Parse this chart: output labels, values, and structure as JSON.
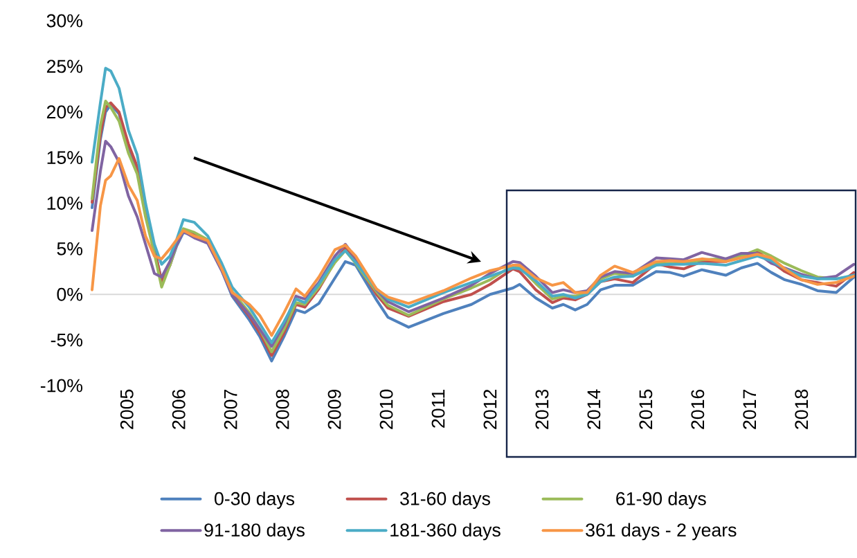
{
  "chart_data": {
    "type": "line",
    "x": [
      2004.33,
      2004.49,
      2004.59,
      2004.69,
      2004.85,
      2005.03,
      2005.2,
      2005.36,
      2005.53,
      2005.67,
      2005.83,
      2005.96,
      2006.09,
      2006.3,
      2006.56,
      2006.83,
      2007.03,
      2007.36,
      2007.56,
      2007.79,
      2008.03,
      2008.26,
      2008.43,
      2008.7,
      2009.01,
      2009.21,
      2009.41,
      2009.81,
      2010.03,
      2010.43,
      2011.1,
      2011.64,
      2012.0,
      2012.44,
      2012.57,
      2012.88,
      2013.2,
      2013.41,
      2013.64,
      2013.87,
      2014.13,
      2014.4,
      2014.75,
      2015.2,
      2015.47,
      2015.73,
      2016.08,
      2016.54,
      2016.84,
      2017.15,
      2017.42,
      2017.68,
      2018.0,
      2018.31,
      2018.67,
      2019.01
    ],
    "xlim": [
      2004.29,
      2019.03
    ],
    "xticks": [
      2005,
      2006,
      2007,
      2008,
      2009,
      2010,
      2011,
      2012,
      2013,
      2014,
      2015,
      2016,
      2017,
      2018
    ],
    "ylim": [
      -10,
      30
    ],
    "yticks": [
      {
        "value": -10,
        "label": "-10%"
      },
      {
        "value": -5,
        "label": "-5%"
      },
      {
        "value": 0,
        "label": "0%"
      },
      {
        "value": 5,
        "label": "5%"
      },
      {
        "value": 10,
        "label": "10%"
      },
      {
        "value": 15,
        "label": "15%"
      },
      {
        "value": 20,
        "label": "20%"
      },
      {
        "value": 25,
        "label": "25%"
      },
      {
        "value": 30,
        "label": "30%"
      }
    ],
    "legend": "bottom",
    "series": [
      {
        "name": "0-30 days",
        "color": "#4f81bd",
        "values": [
          9.5,
          17.0,
          20.0,
          20.8,
          19.8,
          16.2,
          13.8,
          9.0,
          5.0,
          1.5,
          3.2,
          5.3,
          6.8,
          6.4,
          5.6,
          2.6,
          -0.2,
          -2.8,
          -4.6,
          -7.3,
          -4.6,
          -1.7,
          -2.0,
          -1.0,
          1.8,
          3.6,
          3.2,
          -0.6,
          -2.5,
          -3.6,
          -2.1,
          -1.1,
          0.0,
          0.7,
          1.1,
          -0.4,
          -1.5,
          -1.1,
          -1.7,
          -1.1,
          0.5,
          1.0,
          1.0,
          2.5,
          2.4,
          2.0,
          2.7,
          2.1,
          2.9,
          3.4,
          2.4,
          1.6,
          1.1,
          0.4,
          0.2,
          1.9
        ]
      },
      {
        "name": "31-60 days",
        "color": "#c0504d",
        "values": [
          10.1,
          17.5,
          20.5,
          21.0,
          20.0,
          16.5,
          14.0,
          9.0,
          5.0,
          1.4,
          3.2,
          5.5,
          7.0,
          6.6,
          5.8,
          2.8,
          0.0,
          -2.4,
          -4.2,
          -6.7,
          -4.2,
          -1.1,
          -1.4,
          0.6,
          3.6,
          5.1,
          3.6,
          0.0,
          -1.5,
          -2.4,
          -0.8,
          0.0,
          1.1,
          2.8,
          2.5,
          0.5,
          -0.9,
          -0.4,
          -0.6,
          0.0,
          1.4,
          1.7,
          1.3,
          3.4,
          3.0,
          2.8,
          3.6,
          3.6,
          4.2,
          4.7,
          3.6,
          2.5,
          1.6,
          1.3,
          0.9,
          2.4
        ]
      },
      {
        "name": "61-90 days",
        "color": "#9bbb59",
        "values": [
          10.5,
          18.5,
          21.2,
          20.5,
          19.0,
          15.5,
          13.2,
          8.5,
          4.5,
          0.8,
          3.2,
          5.5,
          7.2,
          6.8,
          6.0,
          3.0,
          0.3,
          -2.0,
          -3.8,
          -6.3,
          -3.8,
          -0.9,
          -1.1,
          0.8,
          3.5,
          4.8,
          3.4,
          0.3,
          -1.2,
          -2.3,
          -0.5,
          0.7,
          1.6,
          3.2,
          3.0,
          1.2,
          -0.5,
          -0.2,
          -0.2,
          0.2,
          1.7,
          2.3,
          2.0,
          3.4,
          3.4,
          3.4,
          3.8,
          3.9,
          4.2,
          4.9,
          4.2,
          3.4,
          2.6,
          1.9,
          1.7,
          2.0
        ]
      },
      {
        "name": "91-180 days",
        "color": "#8064a2",
        "values": [
          7.0,
          13.5,
          16.8,
          16.2,
          14.5,
          10.8,
          8.5,
          5.5,
          2.3,
          1.9,
          3.6,
          5.5,
          6.9,
          6.2,
          5.6,
          2.6,
          0.0,
          -2.2,
          -3.8,
          -5.7,
          -3.3,
          -0.2,
          -0.5,
          1.3,
          4.2,
          5.5,
          4.0,
          0.5,
          -0.8,
          -1.9,
          -0.4,
          1.0,
          2.3,
          3.6,
          3.5,
          2.0,
          0.2,
          0.5,
          0.2,
          0.4,
          1.9,
          2.5,
          2.3,
          4.0,
          3.9,
          3.8,
          4.6,
          3.9,
          4.5,
          4.5,
          3.4,
          2.9,
          2.2,
          1.7,
          2.0,
          3.3
        ]
      },
      {
        "name": "181-360 days",
        "color": "#4bacc6",
        "values": [
          14.5,
          21.0,
          24.8,
          24.5,
          22.6,
          18.0,
          15.3,
          10.0,
          5.5,
          3.3,
          4.2,
          6.0,
          8.2,
          7.9,
          6.4,
          3.4,
          0.8,
          -1.4,
          -3.2,
          -5.3,
          -3.0,
          -0.5,
          -0.9,
          1.1,
          3.8,
          4.8,
          3.5,
          0.6,
          -0.5,
          -1.4,
          0.2,
          1.3,
          2.0,
          2.9,
          2.8,
          1.5,
          -0.2,
          0.0,
          -0.4,
          0.0,
          1.4,
          1.9,
          2.0,
          3.2,
          3.3,
          3.3,
          3.4,
          3.2,
          3.7,
          4.2,
          3.7,
          2.8,
          2.0,
          1.7,
          1.7,
          2.1
        ]
      },
      {
        "name": "361 days - 2 years",
        "color": "#f79646",
        "values": [
          0.5,
          9.7,
          12.5,
          13.0,
          14.9,
          12.0,
          10.3,
          6.4,
          4.2,
          3.9,
          5.0,
          6.0,
          7.0,
          6.4,
          5.9,
          2.8,
          0.2,
          -1.1,
          -2.3,
          -4.5,
          -2.0,
          0.6,
          -0.2,
          1.9,
          4.9,
          5.4,
          4.2,
          0.6,
          -0.3,
          -1.0,
          0.4,
          1.8,
          2.6,
          3.2,
          3.2,
          1.8,
          1.0,
          1.3,
          0.2,
          0.2,
          2.1,
          3.1,
          2.4,
          3.6,
          3.7,
          3.6,
          3.9,
          3.6,
          4.0,
          4.4,
          4.0,
          2.8,
          1.6,
          1.1,
          1.3,
          2.0
        ]
      }
    ]
  }
}
